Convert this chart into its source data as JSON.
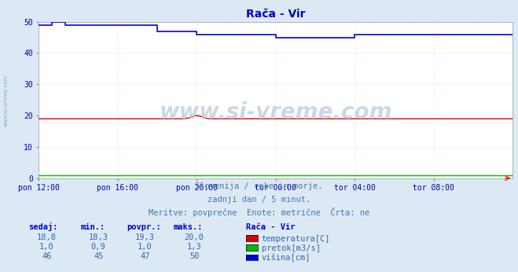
{
  "title": "Rača - Vir",
  "background_color": "#dce9f5",
  "plot_bg_color": "#ffffff",
  "grid_color": "#ffcccc",
  "xlim": [
    0,
    288
  ],
  "ylim": [
    0,
    50
  ],
  "yticks": [
    0,
    10,
    20,
    30,
    40,
    50
  ],
  "xtick_labels": [
    "pon 12:00",
    "pon 16:00",
    "pon 20:00",
    "tor 00:00",
    "tor 04:00",
    "tor 08:00"
  ],
  "xtick_positions": [
    0,
    48,
    96,
    144,
    192,
    240
  ],
  "temp_color": "#dd0000",
  "pretok_color": "#00bb00",
  "visina_color": "#0000dd",
  "subtitle_lines": [
    "Slovenija / reke in morje.",
    "zadnji dan / 5 minut.",
    "Meritve: povprečne  Enote: metrične  Črta: ne"
  ],
  "legend_title": "Rača - Vir",
  "legend_items": [
    {
      "label": "temperatura[C]",
      "color": "#dd0000"
    },
    {
      "label": "pretok[m3/s]",
      "color": "#00bb00"
    },
    {
      "label": "višina[cm]",
      "color": "#0000dd"
    }
  ],
  "table_headers": [
    "sedaj:",
    "min.:",
    "povpr.:",
    "maks.:"
  ],
  "table_data": [
    [
      "18,8",
      "18,3",
      "19,3",
      "20,0"
    ],
    [
      "1,0",
      "0,9",
      "1,0",
      "1,3"
    ],
    [
      "46",
      "45",
      "47",
      "50"
    ]
  ],
  "watermark": "www.si-vreme.com",
  "left_label": "www.si-vreme.com",
  "title_color": "#0000cc",
  "tick_color": "#0000aa",
  "subtitle_color": "#4477aa",
  "table_header_color": "#0000cc",
  "table_val_color": "#3366aa"
}
